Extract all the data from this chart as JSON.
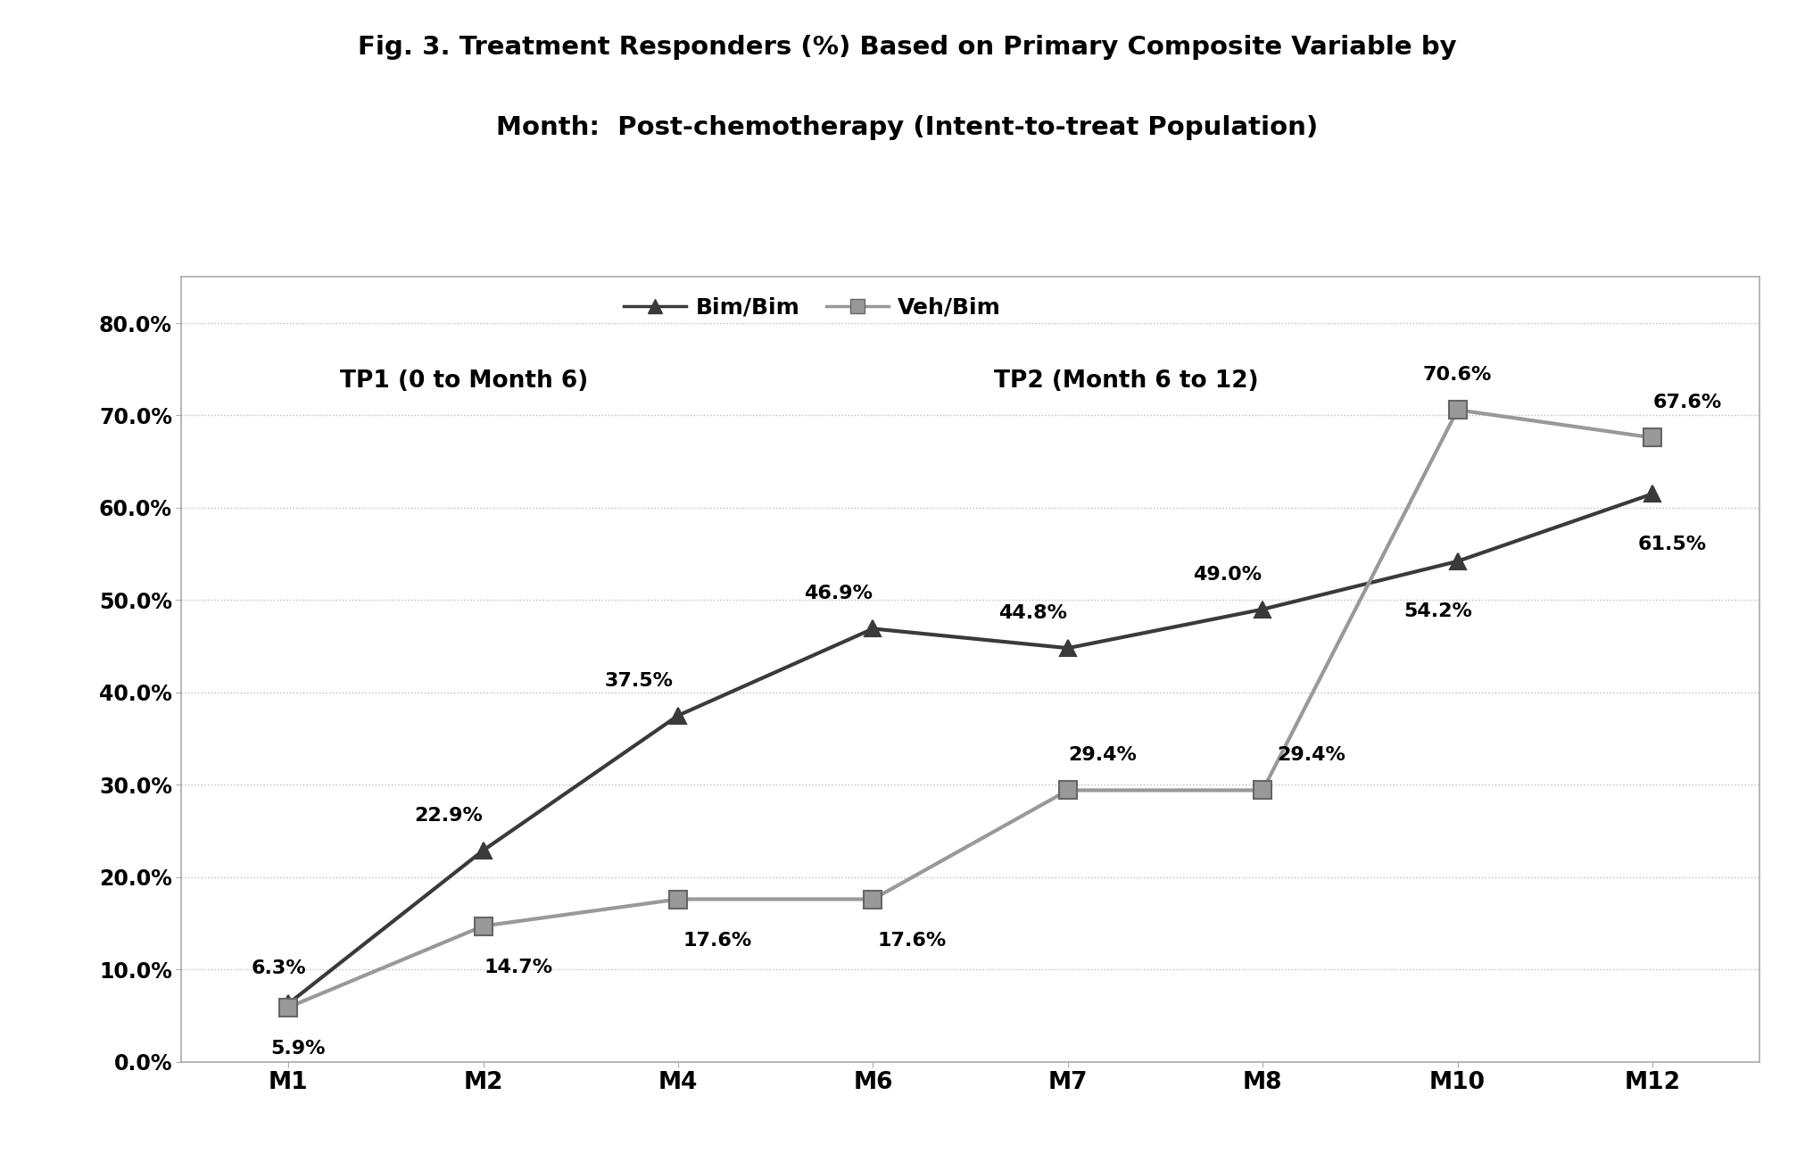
{
  "title_line1": "Fig. 3. Treatment Responders (%) Based on Primary Composite Variable by",
  "title_line2": "Month:  Post-chemotherapy (Intent-to-treat Population)",
  "x_labels": [
    "M1",
    "M2",
    "M4",
    "M6",
    "M7",
    "M8",
    "M10",
    "M12"
  ],
  "x_positions": [
    0,
    1,
    2,
    3,
    4,
    5,
    6,
    7
  ],
  "bim_bim_values": [
    6.3,
    22.9,
    37.5,
    46.9,
    44.8,
    49.0,
    54.2,
    61.5
  ],
  "veh_bim_values": [
    5.9,
    14.7,
    17.6,
    17.6,
    29.4,
    29.4,
    70.6,
    67.6
  ],
  "bim_bim_labels": [
    "6.3%",
    "22.9%",
    "37.5%",
    "46.9%",
    "44.8%",
    "49.0%",
    "54.2%",
    "61.5%"
  ],
  "veh_bim_labels": [
    "5.9%",
    "14.7%",
    "17.6%",
    "17.6%",
    "29.4%",
    "29.4%",
    "70.6%",
    "67.6%"
  ],
  "bim_bim_color": "#3a3a3a",
  "veh_bim_color": "#999999",
  "ylim": [
    0,
    85
  ],
  "yticks": [
    0,
    10,
    20,
    30,
    40,
    50,
    60,
    70,
    80
  ],
  "ytick_labels": [
    "0.0%",
    "10.0%",
    "20.0%",
    "30.0%",
    "40.0%",
    "50.0%",
    "60.0%",
    "70.0%",
    "80.0%"
  ],
  "tp1_label": "TP1 (0 to Month 6)",
  "tp2_label": "TP2 (Month 6 to 12)",
  "legend_bim": "Bim/Bim",
  "legend_veh": "Veh/Bim",
  "background_color": "#ffffff",
  "plot_bg_color": "#ffffff",
  "gridline_color": "#bbbbbb",
  "border_color": "#aaaaaa",
  "title_fontsize": 21,
  "tick_fontsize": 17,
  "label_fontsize": 16,
  "legend_fontsize": 18,
  "tp_fontsize": 19
}
